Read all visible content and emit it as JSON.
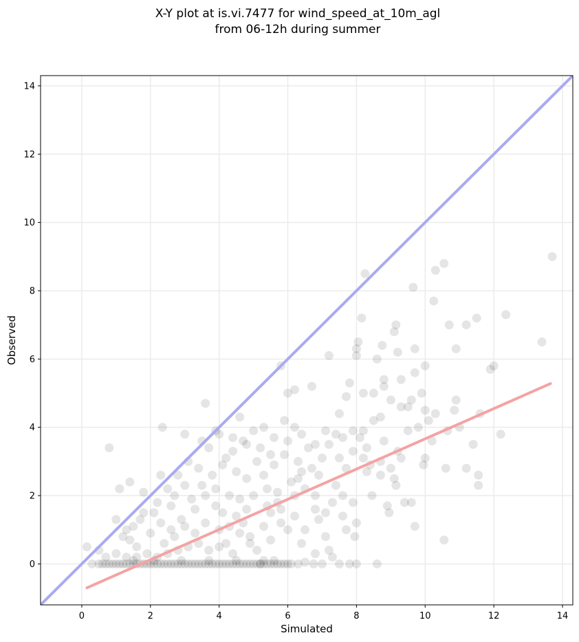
{
  "chart_data": {
    "type": "scatter",
    "title": "X-Y plot at is.vi.7477 for wind_speed_at_10m_agl",
    "subtitle": "from 06-12h during summer",
    "xlabel": "Simulated",
    "ylabel": "Observed",
    "xlim": [
      -1.2,
      14.3
    ],
    "ylim": [
      -1.2,
      14.3
    ],
    "xticks": [
      0,
      2,
      4,
      6,
      8,
      10,
      12,
      14
    ],
    "yticks": [
      0,
      2,
      4,
      6,
      8,
      10,
      12,
      14
    ],
    "grid": true,
    "colors": {
      "points": "#000000",
      "one_to_one_line": "#aaaaf0",
      "fit_line": "#f4a3a3",
      "grid": "#ebebeb"
    },
    "lines": [
      {
        "kind": "one-to-one",
        "x": [
          -1.2,
          14.3
        ],
        "y": [
          -1.2,
          14.3
        ]
      },
      {
        "kind": "fit",
        "x": [
          0.15,
          13.65
        ],
        "y": [
          -0.7,
          5.28
        ]
      }
    ],
    "points": [
      [
        0.15,
        0.5
      ],
      [
        0.8,
        3.4
      ],
      [
        1.1,
        2.2
      ],
      [
        1.4,
        2.4
      ],
      [
        1.8,
        2.1
      ],
      [
        2.35,
        4.0
      ],
      [
        2.3,
        2.6
      ],
      [
        3.0,
        3.8
      ],
      [
        3.6,
        4.7
      ],
      [
        4.6,
        4.3
      ],
      [
        5.8,
        5.8
      ],
      [
        6.0,
        5.0
      ],
      [
        6.2,
        5.1
      ],
      [
        6.7,
        5.2
      ],
      [
        7.2,
        6.1
      ],
      [
        7.5,
        4.4
      ],
      [
        8.25,
        8.5
      ],
      [
        8.0,
        6.1
      ],
      [
        8.0,
        6.3
      ],
      [
        8.05,
        6.5
      ],
      [
        8.15,
        7.2
      ],
      [
        8.6,
        6.0
      ],
      [
        8.75,
        6.4
      ],
      [
        9.1,
        6.8
      ],
      [
        9.15,
        7.0
      ],
      [
        9.2,
        6.2
      ],
      [
        9.65,
        8.1
      ],
      [
        10.3,
        8.6
      ],
      [
        10.55,
        8.8
      ],
      [
        10.25,
        7.7
      ],
      [
        10.7,
        7.0
      ],
      [
        11.2,
        7.0
      ],
      [
        11.5,
        7.2
      ],
      [
        12.35,
        7.3
      ],
      [
        13.7,
        9.0
      ],
      [
        13.4,
        6.5
      ],
      [
        12.0,
        5.8
      ],
      [
        11.9,
        5.7
      ],
      [
        10.9,
        6.3
      ],
      [
        10.0,
        5.8
      ],
      [
        9.7,
        5.6
      ],
      [
        9.3,
        5.4
      ],
      [
        8.8,
        5.4
      ],
      [
        8.5,
        5.0
      ],
      [
        8.2,
        5.0
      ],
      [
        7.8,
        5.3
      ],
      [
        7.7,
        4.9
      ],
      [
        9.7,
        6.3
      ],
      [
        8.8,
        5.2
      ],
      [
        9.0,
        4.8
      ],
      [
        9.5,
        4.6
      ],
      [
        9.9,
        5.0
      ],
      [
        10.0,
        4.5
      ],
      [
        10.3,
        4.4
      ],
      [
        10.9,
        4.8
      ],
      [
        10.85,
        4.5
      ],
      [
        10.65,
        3.9
      ],
      [
        11.0,
        4.0
      ],
      [
        11.6,
        4.4
      ],
      [
        12.2,
        3.8
      ],
      [
        11.4,
        3.5
      ],
      [
        11.2,
        2.8
      ],
      [
        11.55,
        2.6
      ],
      [
        11.55,
        2.3
      ],
      [
        10.55,
        0.7
      ],
      [
        9.7,
        1.1
      ],
      [
        9.95,
        2.9
      ],
      [
        10.0,
        3.1
      ],
      [
        9.15,
        2.3
      ],
      [
        8.95,
        1.5
      ],
      [
        8.9,
        1.7
      ],
      [
        8.7,
        2.6
      ],
      [
        8.45,
        2.0
      ],
      [
        8.3,
        2.7
      ],
      [
        9.1,
        2.5
      ],
      [
        9.4,
        1.8
      ],
      [
        9.6,
        1.8
      ],
      [
        9.2,
        3.3
      ],
      [
        9.5,
        3.9
      ],
      [
        8.5,
        4.2
      ],
      [
        8.7,
        4.3
      ],
      [
        8.1,
        3.7
      ],
      [
        8.2,
        3.9
      ],
      [
        7.9,
        3.3
      ],
      [
        7.7,
        2.8
      ],
      [
        7.5,
        3.1
      ],
      [
        7.2,
        3.5
      ],
      [
        7.0,
        3.1
      ],
      [
        6.9,
        2.6
      ],
      [
        6.7,
        2.8
      ],
      [
        6.5,
        2.2
      ],
      [
        6.3,
        2.5
      ],
      [
        6.8,
        2.0
      ],
      [
        7.1,
        1.5
      ],
      [
        7.3,
        1.8
      ],
      [
        7.6,
        2.0
      ],
      [
        7.9,
        1.8
      ],
      [
        8.0,
        1.2
      ],
      [
        7.7,
        1.0
      ],
      [
        7.95,
        0.8
      ],
      [
        8.0,
        0.0
      ],
      [
        8.6,
        0.0
      ],
      [
        7.8,
        0.0
      ],
      [
        7.5,
        0.0
      ],
      [
        7.3,
        0.2
      ],
      [
        7.2,
        0.4
      ],
      [
        6.8,
        0.3
      ],
      [
        6.1,
        0.0
      ],
      [
        5.6,
        0.1
      ],
      [
        5.2,
        0.0
      ],
      [
        6.75,
        0.0
      ],
      [
        6.4,
        0.6
      ],
      [
        6.0,
        1.0
      ],
      [
        5.8,
        1.2
      ],
      [
        5.5,
        1.5
      ],
      [
        5.7,
        1.8
      ],
      [
        6.2,
        1.4
      ],
      [
        5.4,
        2.2
      ],
      [
        5.0,
        2.0
      ],
      [
        4.8,
        1.6
      ],
      [
        4.5,
        1.4
      ],
      [
        4.3,
        1.1
      ],
      [
        4.6,
        0.9
      ],
      [
        4.9,
        0.6
      ],
      [
        5.1,
        0.4
      ],
      [
        4.4,
        0.3
      ],
      [
        4.0,
        0.5
      ],
      [
        3.7,
        0.4
      ],
      [
        3.4,
        0.6
      ],
      [
        3.1,
        0.5
      ],
      [
        2.8,
        0.4
      ],
      [
        2.5,
        0.3
      ],
      [
        2.2,
        0.2
      ],
      [
        1.9,
        0.3
      ],
      [
        1.6,
        0.2
      ],
      [
        1.3,
        0.2
      ],
      [
        1.0,
        0.3
      ],
      [
        0.7,
        0.2
      ],
      [
        0.5,
        0.4
      ],
      [
        1.2,
        0.8
      ],
      [
        1.5,
        1.1
      ],
      [
        1.8,
        1.5
      ],
      [
        2.0,
        0.9
      ],
      [
        2.3,
        1.2
      ],
      [
        2.6,
        1.7
      ],
      [
        2.9,
        1.3
      ],
      [
        3.2,
        1.9
      ],
      [
        3.5,
        2.3
      ],
      [
        3.8,
        2.6
      ],
      [
        4.1,
        2.9
      ],
      [
        4.4,
        3.3
      ],
      [
        4.7,
        3.6
      ],
      [
        5.0,
        3.9
      ],
      [
        5.3,
        4.0
      ],
      [
        5.6,
        3.7
      ],
      [
        5.9,
        4.2
      ],
      [
        6.2,
        4.0
      ],
      [
        5.1,
        3.0
      ],
      [
        4.8,
        2.5
      ],
      [
        4.3,
        2.0
      ],
      [
        3.9,
        1.7
      ],
      [
        3.6,
        1.2
      ],
      [
        3.3,
        0.9
      ],
      [
        2.7,
        0.8
      ],
      [
        2.4,
        0.6
      ],
      [
        2.1,
        1.5
      ],
      [
        1.7,
        1.3
      ],
      [
        1.4,
        0.7
      ],
      [
        2.5,
        2.2
      ],
      [
        2.8,
        2.6
      ],
      [
        3.1,
        3.0
      ],
      [
        3.4,
        2.8
      ],
      [
        3.7,
        3.4
      ],
      [
        4.0,
        3.8
      ],
      [
        4.2,
        3.1
      ],
      [
        4.5,
        2.7
      ],
      [
        5.3,
        2.6
      ],
      [
        5.6,
        2.9
      ],
      [
        5.9,
        3.2
      ],
      [
        6.3,
        3.0
      ],
      [
        6.6,
        3.4
      ],
      [
        6.2,
        2.0
      ],
      [
        5.8,
        1.6
      ],
      [
        5.3,
        1.1
      ],
      [
        4.9,
        0.8
      ],
      [
        4.2,
        0.6
      ],
      [
        3.0,
        1.1
      ],
      [
        2.6,
        1.0
      ],
      [
        3.3,
        1.6
      ],
      [
        3.9,
        2.2
      ],
      [
        4.6,
        1.9
      ],
      [
        5.5,
        0.7
      ],
      [
        6.9,
        1.3
      ],
      [
        7.4,
        2.3
      ],
      [
        8.3,
        3.4
      ],
      [
        8.8,
        3.6
      ],
      [
        9.3,
        3.1
      ],
      [
        9.8,
        4.0
      ],
      [
        10.2,
        3.6
      ],
      [
        10.6,
        2.8
      ],
      [
        0.3,
        0.0
      ],
      [
        0.5,
        0.0
      ],
      [
        0.7,
        0.0
      ],
      [
        0.9,
        0.0
      ],
      [
        1.1,
        0.0
      ],
      [
        1.3,
        0.0
      ],
      [
        1.5,
        0.0
      ],
      [
        1.7,
        0.0
      ],
      [
        1.9,
        0.0
      ],
      [
        2.1,
        0.0
      ],
      [
        2.3,
        0.0
      ],
      [
        2.5,
        0.0
      ],
      [
        2.7,
        0.0
      ],
      [
        2.9,
        0.0
      ],
      [
        3.1,
        0.0
      ],
      [
        3.3,
        0.0
      ],
      [
        3.5,
        0.0
      ],
      [
        3.7,
        0.0
      ],
      [
        3.9,
        0.0
      ],
      [
        4.1,
        0.0
      ],
      [
        4.3,
        0.0
      ],
      [
        4.5,
        0.0
      ],
      [
        4.7,
        0.0
      ],
      [
        4.9,
        0.0
      ],
      [
        5.1,
        0.0
      ],
      [
        5.3,
        0.0
      ],
      [
        5.5,
        0.0
      ],
      [
        5.7,
        0.0
      ],
      [
        5.9,
        0.0
      ],
      [
        6.3,
        0.0
      ],
      [
        2.0,
        0.0
      ],
      [
        2.4,
        0.0
      ],
      [
        2.8,
        0.0
      ],
      [
        3.2,
        0.0
      ],
      [
        3.6,
        0.0
      ],
      [
        4.0,
        0.0
      ],
      [
        1.6,
        0.0
      ],
      [
        1.2,
        0.0
      ],
      [
        0.8,
        0.0
      ],
      [
        4.4,
        0.0
      ],
      [
        4.8,
        0.0
      ],
      [
        5.2,
        0.0
      ],
      [
        5.6,
        0.0
      ],
      [
        6.0,
        0.0
      ],
      [
        2.2,
        0.0
      ],
      [
        2.6,
        0.0
      ],
      [
        3.0,
        0.0
      ],
      [
        3.4,
        0.0
      ],
      [
        3.8,
        0.0
      ],
      [
        4.2,
        0.0
      ],
      [
        4.6,
        0.0
      ],
      [
        1.8,
        0.0
      ],
      [
        1.4,
        0.0
      ],
      [
        1.0,
        0.0
      ],
      [
        0.6,
        0.0
      ],
      [
        5.0,
        0.0
      ],
      [
        5.4,
        0.0
      ],
      [
        5.8,
        0.0
      ],
      [
        2.1,
        0.1
      ],
      [
        2.9,
        0.1
      ],
      [
        3.7,
        0.1
      ],
      [
        4.5,
        0.1
      ],
      [
        1.5,
        0.1
      ],
      [
        5.3,
        0.1
      ],
      [
        6.5,
        0.05
      ],
      [
        7.0,
        0.0
      ],
      [
        1.0,
        1.3
      ],
      [
        1.3,
        1.0
      ],
      [
        1.6,
        0.5
      ],
      [
        2.2,
        1.8
      ],
      [
        2.7,
        2.0
      ],
      [
        3.0,
        2.3
      ],
      [
        3.5,
        3.6
      ],
      [
        3.9,
        3.9
      ],
      [
        4.4,
        3.7
      ],
      [
        4.8,
        3.5
      ],
      [
        5.2,
        3.4
      ],
      [
        5.5,
        3.2
      ],
      [
        6.0,
        3.6
      ],
      [
        6.4,
        3.8
      ],
      [
        6.8,
        3.5
      ],
      [
        7.1,
        3.9
      ],
      [
        7.4,
        3.8
      ],
      [
        7.6,
        3.7
      ],
      [
        7.9,
        3.9
      ],
      [
        8.2,
        3.1
      ],
      [
        8.4,
        2.9
      ],
      [
        8.7,
        3.0
      ],
      [
        9.0,
        2.8
      ],
      [
        9.3,
        4.6
      ],
      [
        9.6,
        4.8
      ],
      [
        10.1,
        4.2
      ],
      [
        6.5,
        1.0
      ],
      [
        6.8,
        1.6
      ],
      [
        7.1,
        0.8
      ],
      [
        7.6,
        1.4
      ],
      [
        3.6,
        2.0
      ],
      [
        4.1,
        1.5
      ],
      [
        4.7,
        1.2
      ],
      [
        5.4,
        1.7
      ],
      [
        5.7,
        2.1
      ],
      [
        6.1,
        2.4
      ],
      [
        6.4,
        2.7
      ],
      [
        4.0,
        1.0
      ]
    ]
  }
}
